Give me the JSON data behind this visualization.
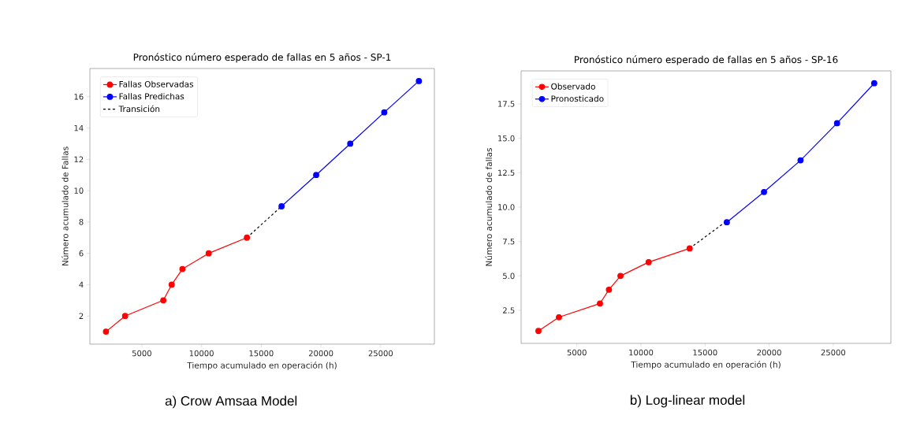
{
  "chart_data": [
    {
      "type": "line",
      "title": "Pronóstico número esperado de fallas en 5 años - SP-1",
      "xlabel": "Tiempo acumulado en operación (h)",
      "ylabel": "Número acumulado de Fallas",
      "xlim": [
        650,
        29500
      ],
      "ylim": [
        0.2,
        17.8
      ],
      "xticks": [
        5000,
        10000,
        15000,
        20000,
        25000
      ],
      "yticks": [
        2,
        4,
        6,
        8,
        10,
        12,
        14,
        16
      ],
      "legend": "top left",
      "annotations": [
        "a)    Crow Amsaa Model"
      ],
      "series": [
        {
          "name": "Fallas Observadas",
          "color": "#ff0000",
          "marker": "circle",
          "x": [
            2000,
            3600,
            6800,
            7500,
            8400,
            10600,
            13800
          ],
          "values": [
            1,
            2,
            3,
            4,
            5,
            6,
            7
          ]
        },
        {
          "name": "Fallas Predichas",
          "color": "#0000ff",
          "marker": "circle",
          "x": [
            16700,
            19600,
            22450,
            25300,
            28200
          ],
          "values": [
            9,
            11,
            13,
            15,
            17
          ]
        },
        {
          "name": "Transición",
          "color": "#000000",
          "marker": "none",
          "line_style": "dashed",
          "x": [
            13800,
            16700
          ],
          "values": [
            7,
            9
          ]
        }
      ]
    },
    {
      "type": "line",
      "title": "Pronóstico número esperado de fallas en 5 años - SP-16",
      "xlabel": "Tiempo acumulado en operación (h)",
      "ylabel": "Número acumulado de fallas",
      "xlim": [
        650,
        29500
      ],
      "ylim": [
        0.1,
        19.9
      ],
      "xticks": [
        5000,
        10000,
        15000,
        20000,
        25000
      ],
      "yticks": [
        {
          "value": 2.5,
          "label": "2.5"
        },
        {
          "value": 5,
          "label": "5.0"
        },
        {
          "value": 7.5,
          "label": "7.5"
        },
        {
          "value": 10,
          "label": "10.0"
        },
        {
          "value": 12.5,
          "label": "12.5"
        },
        {
          "value": 15,
          "label": "15.0"
        },
        {
          "value": 17.5,
          "label": "17.5"
        }
      ],
      "legend": "top left",
      "annotations": [
        "b)    Log-linear model"
      ],
      "series": [
        {
          "name": "Observado",
          "color": "#ff0000",
          "marker": "circle",
          "x": [
            2000,
            3600,
            6800,
            7500,
            8400,
            10600,
            13800
          ],
          "values": [
            1,
            2,
            3,
            4,
            5,
            6,
            7
          ]
        },
        {
          "name": "Pronosticado",
          "color": "#0000ff",
          "marker": "circle",
          "x": [
            16700,
            19600,
            22450,
            25300,
            28200
          ],
          "values": [
            8.9,
            11.1,
            13.4,
            16.1,
            19.0
          ]
        },
        {
          "color": "#000000",
          "marker": "none",
          "line_style": "dashed",
          "x": [
            13800,
            16700
          ],
          "values": [
            7,
            9
          ]
        }
      ]
    }
  ]
}
